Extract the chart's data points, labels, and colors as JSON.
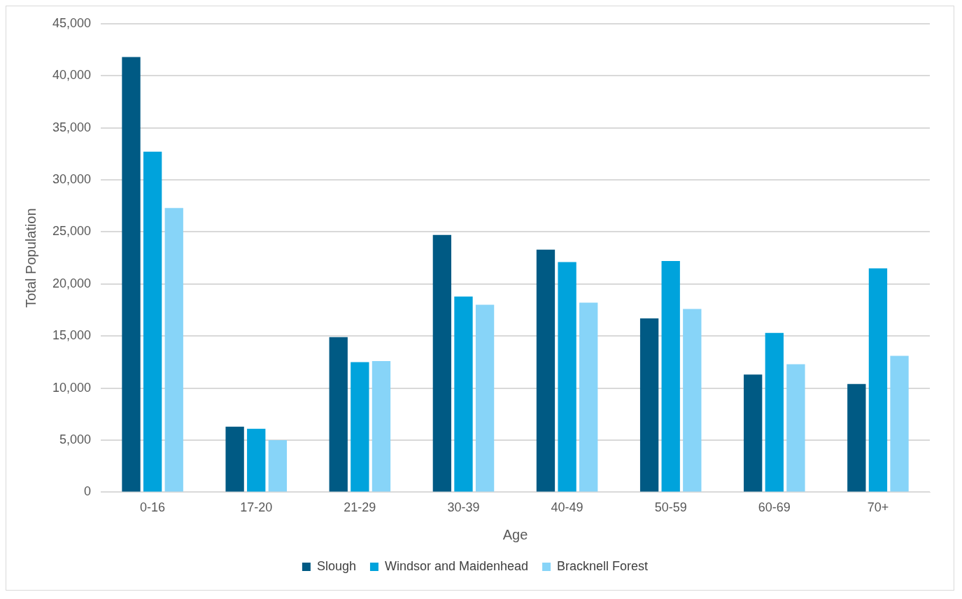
{
  "chart_data": {
    "type": "bar",
    "xlabel": "Age",
    "ylabel": "Total Population",
    "categories": [
      "0-16",
      "17-20",
      "21-29",
      "30-39",
      "40-49",
      "50-59",
      "60-69",
      "70+"
    ],
    "series": [
      {
        "name": "Slough",
        "color": "#005a84",
        "values": [
          41800,
          6300,
          14900,
          24700,
          23300,
          16700,
          11300,
          10400
        ]
      },
      {
        "name": "Windsor and Maidenhead",
        "color": "#00a3dc",
        "values": [
          32700,
          6100,
          12500,
          18800,
          22100,
          22200,
          15300,
          21500
        ]
      },
      {
        "name": "Bracknell Forest",
        "color": "#87d4f8",
        "values": [
          27300,
          5000,
          12600,
          18000,
          18200,
          17600,
          12300,
          13100
        ]
      }
    ],
    "ylim": [
      0,
      45000
    ],
    "yticks": [
      {
        "value": 0,
        "label": "0"
      },
      {
        "value": 5000,
        "label": "5,000"
      },
      {
        "value": 10000,
        "label": "10,000"
      },
      {
        "value": 15000,
        "label": "15,000"
      },
      {
        "value": 20000,
        "label": "20,000"
      },
      {
        "value": 25000,
        "label": "25,000"
      },
      {
        "value": 30000,
        "label": "30,000"
      },
      {
        "value": 35000,
        "label": "35,000"
      },
      {
        "value": 40000,
        "label": "40,000"
      },
      {
        "value": 45000,
        "label": "45,000"
      }
    ],
    "grid": "y",
    "legend": "bottom"
  }
}
